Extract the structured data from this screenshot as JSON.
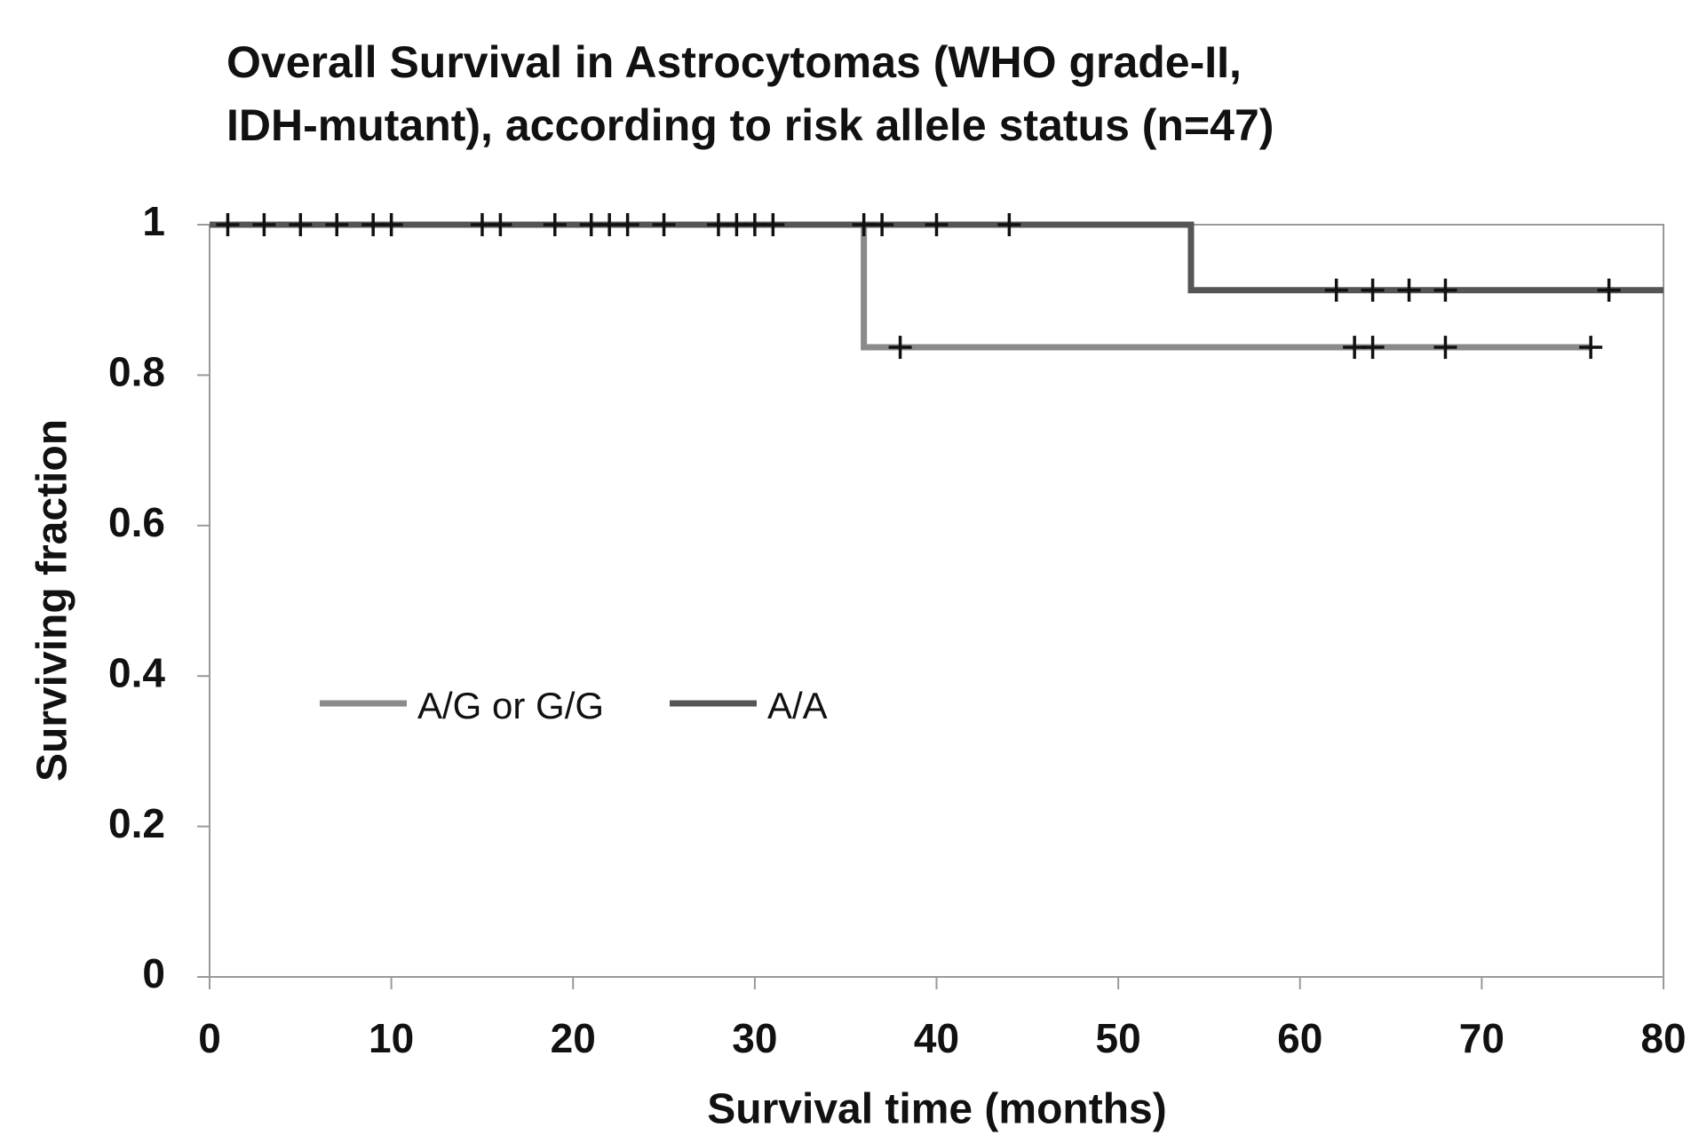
{
  "chart_data": {
    "type": "step",
    "title": [
      "Overall Survival in Astrocytomas (WHO grade-II,",
      "IDH-mutant), according to risk allele status (n=47)"
    ],
    "x_label": "Survival time (months)",
    "y_label": "Surviving fraction",
    "xlim": [
      0,
      80
    ],
    "xticks": [
      0,
      10,
      20,
      30,
      40,
      50,
      60,
      70,
      80
    ],
    "ylim": [
      0,
      1
    ],
    "yticks": [
      0,
      0.2,
      0.4,
      0.6,
      0.8,
      1
    ],
    "series": [
      {
        "name": "A/G or G/G",
        "color": "#8a8a8a",
        "x": [
          0,
          36,
          36,
          76
        ],
        "values": [
          1,
          1,
          0.837,
          0.837
        ],
        "censored_x": [
          38,
          63,
          64,
          68,
          76
        ],
        "censored_values": [
          0.837,
          0.837,
          0.837,
          0.837,
          0.837
        ]
      },
      {
        "name": "A/A",
        "color": "#555555",
        "x": [
          0,
          54,
          54,
          80
        ],
        "values": [
          1,
          1,
          0.913,
          0.913
        ],
        "censored_x": [
          1,
          3,
          5,
          7,
          9,
          10,
          15,
          16,
          19,
          21,
          22,
          23,
          25,
          28,
          29,
          30,
          31,
          36,
          37,
          40,
          44,
          62,
          64,
          66,
          68,
          77
        ],
        "censored_values": [
          1,
          1,
          1,
          1,
          1,
          1,
          1,
          1,
          1,
          1,
          1,
          1,
          1,
          1,
          1,
          1,
          1,
          1,
          1,
          1,
          1,
          0.913,
          0.913,
          0.913,
          0.913,
          0.913
        ]
      }
    ]
  }
}
